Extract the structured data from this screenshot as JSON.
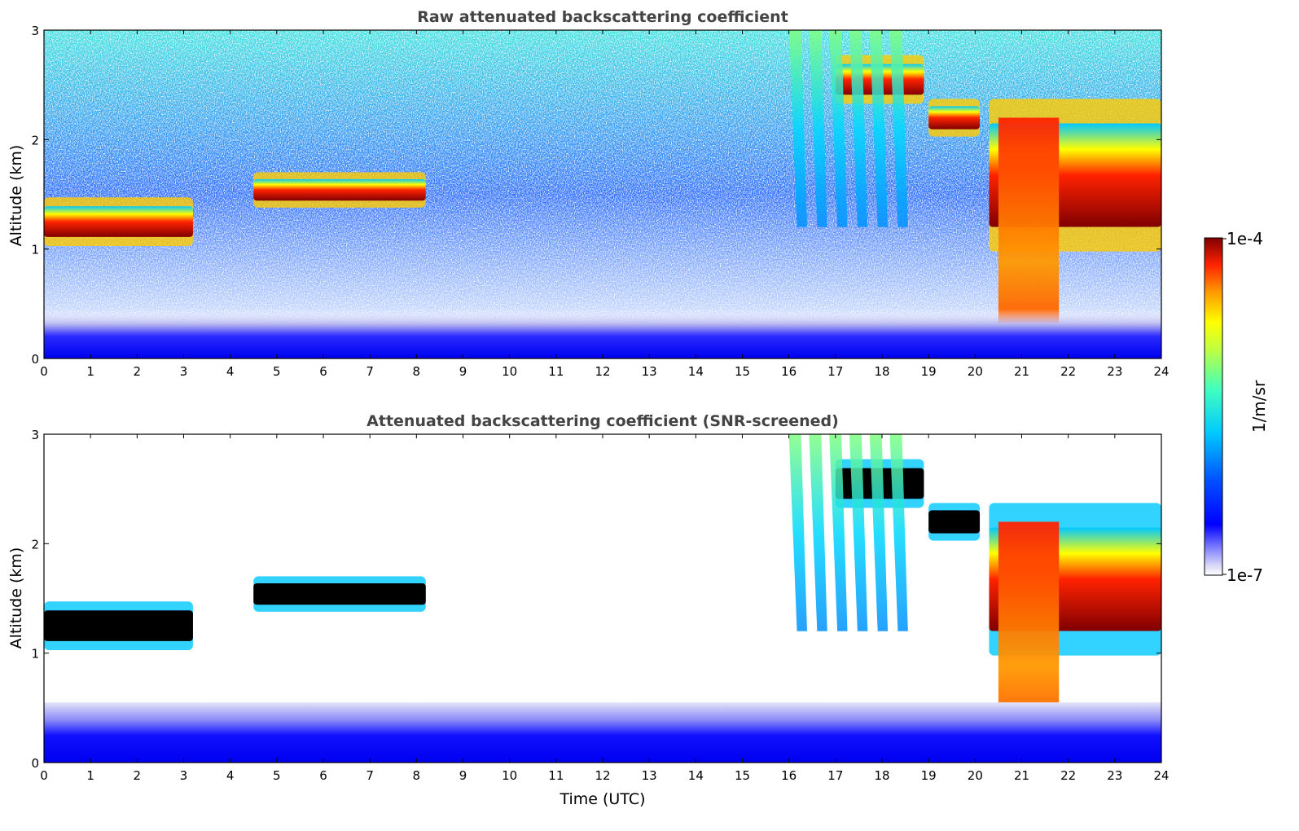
{
  "chart_data": [
    {
      "type": "heatmap",
      "title": "Raw attenuated backscattering coefficient",
      "xlabel": "",
      "ylabel": "Altitude (km)",
      "xlim": [
        0,
        24
      ],
      "ylim": [
        0,
        3
      ],
      "xticks": [
        "0",
        "1",
        "2",
        "3",
        "4",
        "5",
        "6",
        "7",
        "8",
        "9",
        "10",
        "11",
        "12",
        "13",
        "14",
        "15",
        "16",
        "17",
        "18",
        "19",
        "20",
        "21",
        "22",
        "23",
        "24"
      ],
      "yticks": [
        "0",
        "1",
        "2",
        "3"
      ],
      "screened": false,
      "features": [
        {
          "kind": "cloud_layer",
          "x": [
            0,
            3.2
          ],
          "base_km": 1.05,
          "top_km": 1.45,
          "intensity": "high"
        },
        {
          "kind": "cloud_layer",
          "x": [
            4.5,
            8.2
          ],
          "base_km": 1.4,
          "top_km": 1.68,
          "intensity": "high"
        },
        {
          "kind": "cloud_layer",
          "x": [
            17.0,
            18.9
          ],
          "base_km": 2.35,
          "top_km": 2.75,
          "intensity": "high"
        },
        {
          "kind": "cloud_layer",
          "x": [
            19.0,
            20.1
          ],
          "base_km": 2.05,
          "top_km": 2.35,
          "intensity": "high"
        },
        {
          "kind": "cloud_layer",
          "x": [
            20.3,
            24
          ],
          "base_km": 1.0,
          "top_km": 2.35,
          "intensity": "high"
        },
        {
          "kind": "precipitation",
          "x": [
            20.5,
            21.8
          ],
          "base_km": 0.0,
          "top_km": 2.2,
          "intensity": "medium"
        },
        {
          "kind": "virga",
          "x": [
            16.0,
            18.6
          ],
          "base_km": 1.2,
          "top_km": 3.0,
          "intensity": "medium"
        },
        {
          "kind": "boundary_layer",
          "x": [
            0,
            24
          ],
          "base_km": 0.0,
          "top_km": 0.45,
          "intensity": "low"
        }
      ]
    },
    {
      "type": "heatmap",
      "title": "Attenuated backscattering coefficient (SNR-screened)",
      "xlabel": "Time (UTC)",
      "ylabel": "Altitude (km)",
      "xlim": [
        0,
        24
      ],
      "ylim": [
        0,
        3
      ],
      "xticks": [
        "0",
        "1",
        "2",
        "3",
        "4",
        "5",
        "6",
        "7",
        "8",
        "9",
        "10",
        "11",
        "12",
        "13",
        "14",
        "15",
        "16",
        "17",
        "18",
        "19",
        "20",
        "21",
        "22",
        "23",
        "24"
      ],
      "yticks": [
        "0",
        "1",
        "2",
        "3"
      ],
      "screened": true,
      "features": [
        {
          "kind": "cloud_layer",
          "x": [
            0,
            3.2
          ],
          "base_km": 1.05,
          "top_km": 1.45,
          "intensity": "saturated"
        },
        {
          "kind": "cloud_layer",
          "x": [
            4.5,
            8.2
          ],
          "base_km": 1.4,
          "top_km": 1.68,
          "intensity": "saturated"
        },
        {
          "kind": "cloud_layer",
          "x": [
            17.0,
            18.9
          ],
          "base_km": 2.35,
          "top_km": 2.75,
          "intensity": "saturated"
        },
        {
          "kind": "cloud_layer",
          "x": [
            19.0,
            20.1
          ],
          "base_km": 2.05,
          "top_km": 2.35,
          "intensity": "saturated"
        },
        {
          "kind": "cloud_layer",
          "x": [
            20.3,
            24
          ],
          "base_km": 1.0,
          "top_km": 2.35,
          "intensity": "high"
        },
        {
          "kind": "precipitation",
          "x": [
            20.5,
            21.8
          ],
          "base_km": 0.0,
          "top_km": 2.2,
          "intensity": "medium"
        },
        {
          "kind": "virga",
          "x": [
            16.0,
            18.6
          ],
          "base_km": 1.2,
          "top_km": 3.0,
          "intensity": "medium"
        },
        {
          "kind": "boundary_layer",
          "x": [
            0,
            24
          ],
          "base_km": 0.0,
          "top_km": 0.55,
          "intensity": "low"
        }
      ]
    }
  ],
  "colorbar": {
    "label": "1/m/sr",
    "min_label": "1e-7",
    "max_label": "1e-4",
    "scale": "log",
    "colormap": "jet",
    "colors": [
      "#ffffff",
      "#d6d6f5",
      "#8080ff",
      "#0000ff",
      "#0064ff",
      "#00c8ff",
      "#40ffbf",
      "#bfff40",
      "#ffff00",
      "#ff9900",
      "#ff2200",
      "#800000"
    ]
  }
}
